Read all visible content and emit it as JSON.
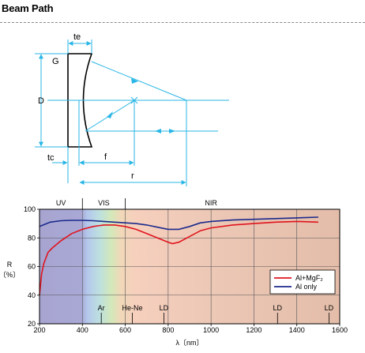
{
  "header": {
    "title": "Beam Path"
  },
  "diagram": {
    "labels": {
      "te": "te",
      "G": "G",
      "D": "D",
      "tc": "tc",
      "f": "f",
      "r": "r"
    },
    "colors": {
      "lens": "#000000",
      "rays": "#29b6e6"
    }
  },
  "chart_data": {
    "type": "line",
    "xlabel": "λ〔nm〕",
    "ylabel": "R\n〔%〕",
    "xlim": [
      200,
      1600
    ],
    "ylim": [
      20,
      100
    ],
    "xticks": [
      200,
      400,
      600,
      800,
      1000,
      1200,
      1400,
      1600
    ],
    "yticks": [
      20,
      40,
      60,
      80,
      100
    ],
    "grid": true,
    "legend_position": "lower-right",
    "regions": [
      {
        "label": "UV",
        "from": 200,
        "to": 400,
        "color": "#a8a6d2"
      },
      {
        "label": "VIS",
        "from": 400,
        "to": 600,
        "color": "#b8dcc4"
      },
      {
        "label": "NIR",
        "from": 600,
        "to": 1600,
        "color": "#e8c0ae"
      }
    ],
    "markers": [
      {
        "label": "Ar",
        "x": 488
      },
      {
        "label": "He-Ne",
        "x": 633
      },
      {
        "label": "LD",
        "x": 780
      },
      {
        "label": "LD",
        "x": 1310
      },
      {
        "label": "LD",
        "x": 1550
      }
    ],
    "series": [
      {
        "name": "Al+MgF₂",
        "color": "#e0141e",
        "x": [
          200,
          210,
          220,
          240,
          260,
          300,
          350,
          400,
          450,
          500,
          550,
          600,
          650,
          700,
          750,
          800,
          820,
          850,
          900,
          950,
          1000,
          1100,
          1200,
          1300,
          1400,
          1500
        ],
        "y": [
          40,
          55,
          62,
          70,
          73,
          78,
          83,
          86,
          88,
          89,
          89,
          88,
          86,
          83,
          80,
          77,
          76,
          77,
          81,
          85,
          87,
          89,
          90,
          91,
          91.5,
          91
        ]
      },
      {
        "name": "Al only",
        "color": "#1b2a8c",
        "x": [
          200,
          250,
          300,
          350,
          400,
          450,
          500,
          550,
          600,
          650,
          700,
          750,
          800,
          850,
          900,
          950,
          1000,
          1100,
          1200,
          1300,
          1400,
          1500
        ],
        "y": [
          88,
          91,
          92,
          92.3,
          92.3,
          92,
          91.5,
          91,
          90.5,
          90,
          89,
          87.5,
          86,
          86,
          88,
          90.5,
          91.5,
          92.5,
          93,
          93.5,
          94,
          94.5
        ]
      }
    ]
  }
}
